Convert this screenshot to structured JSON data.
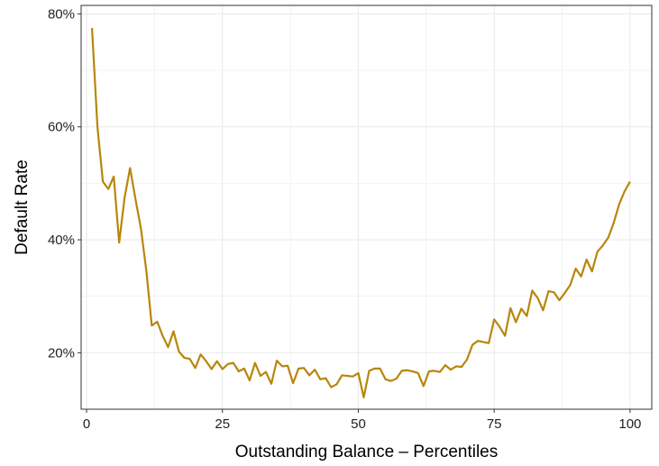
{
  "chart_data": {
    "type": "line",
    "title": "",
    "xlabel": "Outstanding Balance – Percentiles",
    "ylabel": "Default Rate",
    "xlim": [
      -1,
      104
    ],
    "ylim": [
      10,
      81.5
    ],
    "grid": true,
    "legend": "none",
    "colors": {
      "line": "#B8860B",
      "grid": "#EBEBEB",
      "panel_border": "#333333",
      "axis_tick": "#333333"
    },
    "x_ticks": [
      {
        "value": 0,
        "label": "0"
      },
      {
        "value": 25,
        "label": "25"
      },
      {
        "value": 50,
        "label": "50"
      },
      {
        "value": 75,
        "label": "75"
      },
      {
        "value": 100,
        "label": "100"
      }
    ],
    "y_ticks": [
      {
        "value": 20,
        "label": "20%"
      },
      {
        "value": 40,
        "label": "40%"
      },
      {
        "value": 60,
        "label": "60%"
      },
      {
        "value": 80,
        "label": "80%"
      }
    ],
    "series": [
      {
        "x": [
          1,
          2,
          3,
          4,
          5,
          6,
          7,
          8,
          9,
          10,
          11,
          12,
          13,
          14,
          15,
          16,
          17,
          18,
          19,
          20,
          21,
          22,
          23,
          24,
          25,
          26,
          27,
          28,
          29,
          30,
          31,
          32,
          33,
          34,
          35,
          36,
          37,
          38,
          39,
          40,
          41,
          42,
          43,
          44,
          45,
          46,
          47,
          48,
          49,
          50,
          51,
          52,
          53,
          54,
          55,
          56,
          57,
          58,
          59,
          60,
          61,
          62,
          63,
          64,
          65,
          66,
          67,
          68,
          69,
          70,
          71,
          72,
          73,
          74,
          75,
          76,
          77,
          78,
          79,
          80,
          81,
          82,
          83,
          84,
          85,
          86,
          87,
          88,
          89,
          90,
          91,
          92,
          93,
          94,
          95,
          96,
          97,
          98,
          99,
          100
        ],
        "values": [
          77.5,
          60.0,
          50.3,
          49.0,
          51.2,
          39.5,
          47.5,
          52.7,
          47.2,
          42.0,
          34.5,
          24.8,
          25.5,
          23.0,
          21.0,
          23.8,
          20.2,
          19.1,
          18.9,
          17.3,
          19.7,
          18.5,
          17.1,
          18.5,
          17.1,
          18.0,
          18.2,
          16.7,
          17.2,
          15.1,
          18.2,
          15.9,
          16.6,
          14.5,
          18.6,
          17.6,
          17.7,
          14.6,
          17.2,
          17.3,
          16.0,
          17.0,
          15.3,
          15.5,
          13.9,
          14.4,
          16.0,
          15.9,
          15.8,
          16.4,
          12.1,
          16.8,
          17.2,
          17.2,
          15.3,
          15.0,
          15.4,
          16.8,
          16.9,
          16.7,
          16.4,
          14.1,
          16.7,
          16.8,
          16.6,
          17.8,
          17.0,
          17.6,
          17.5,
          18.8,
          21.4,
          22.1,
          21.9,
          21.7,
          25.9,
          24.6,
          23.0,
          27.9,
          25.4,
          27.8,
          26.5,
          31.0,
          29.7,
          27.5,
          30.9,
          30.7,
          29.3,
          30.6,
          32.0,
          34.9,
          33.5,
          36.5,
          34.4,
          37.9,
          39.0,
          40.4,
          43.0,
          46.3,
          48.6,
          50.3
        ]
      }
    ]
  }
}
